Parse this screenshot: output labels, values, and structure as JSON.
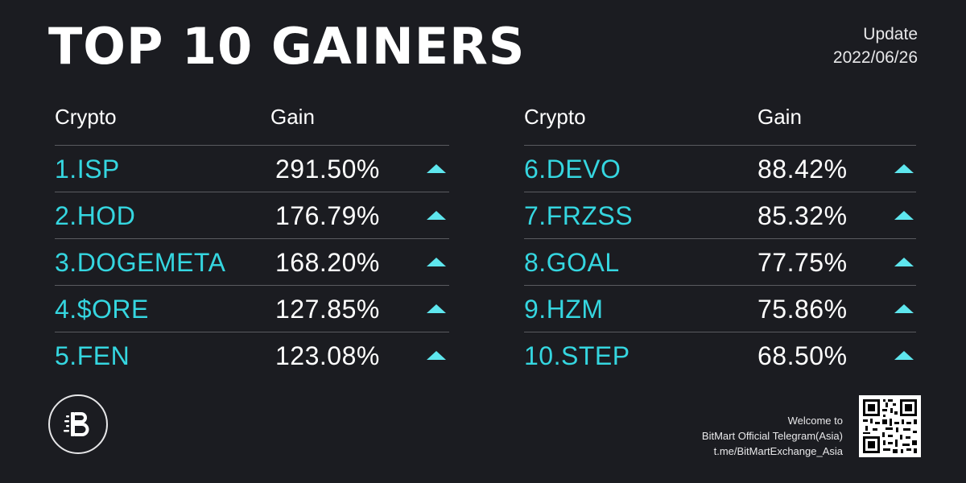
{
  "header": {
    "title": "TOP 10 GAINERS",
    "update_label": "Update",
    "update_date": "2022/06/26"
  },
  "columns": {
    "crypto": "Crypto",
    "gain": "Gain"
  },
  "left_table": [
    {
      "name": "1.ISP",
      "gain": "291.50%"
    },
    {
      "name": "2.HOD",
      "gain": "176.79%"
    },
    {
      "name": "3.DOGEMETA",
      "gain": "168.20%"
    },
    {
      "name": "4.$ORE",
      "gain": "127.85%"
    },
    {
      "name": "5.FEN",
      "gain": "123.08%"
    }
  ],
  "right_table": [
    {
      "name": "6.DEVO",
      "gain": "88.42%"
    },
    {
      "name": "7.FRZSS",
      "gain": "85.32%"
    },
    {
      "name": "8.GOAL",
      "gain": "77.75%"
    },
    {
      "name": "9.HZM",
      "gain": "75.86%"
    },
    {
      "name": "10.STEP",
      "gain": "68.50%"
    }
  ],
  "footer": {
    "line1": "Welcome to",
    "line2": "BitMart Official Telegram(Asia)",
    "line3": "t.me/BitMartExchange_Asia"
  },
  "icons": {
    "arrow": "up-triangle-icon",
    "logo": "bitmart-logo-icon",
    "qr": "qr-code-icon"
  },
  "colors": {
    "background": "#1b1c21",
    "accent": "#35d6e0",
    "arrow": "#5ee6ee",
    "text": "#ffffff"
  }
}
